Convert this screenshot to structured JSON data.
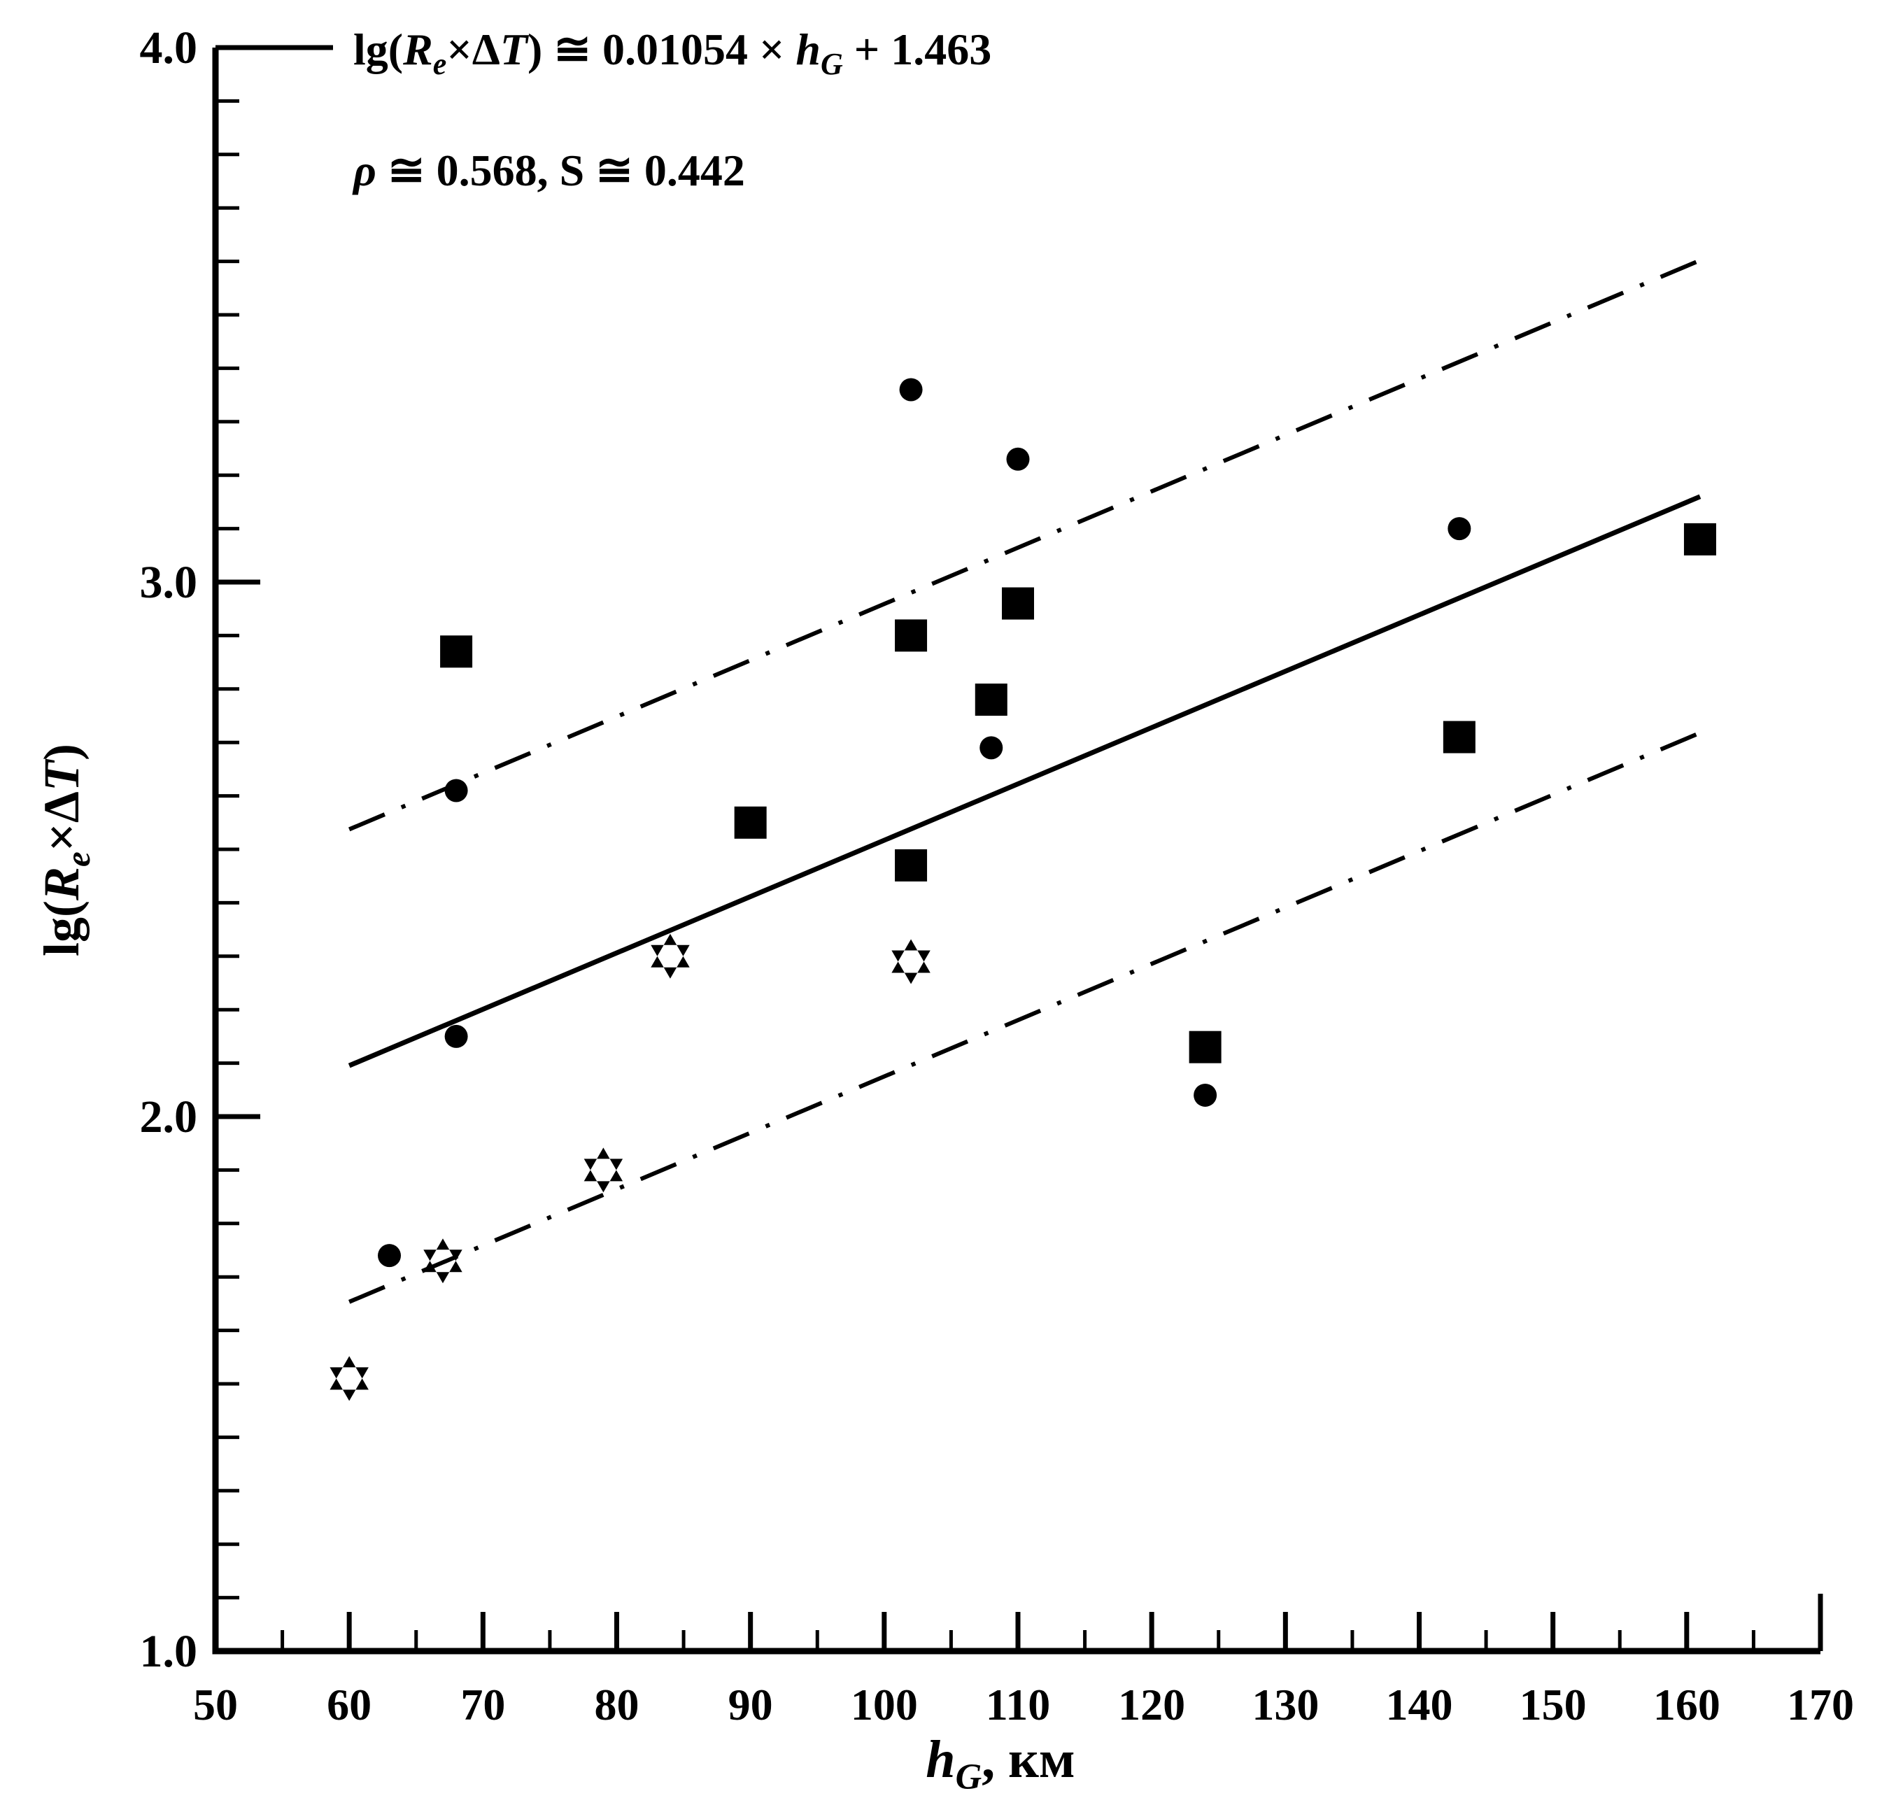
{
  "chart_data": {
    "type": "scatter",
    "title": "",
    "equation_parts": [
      {
        "t": "lg("
      },
      {
        "t": "R",
        "i": 1
      },
      {
        "t": "e",
        "i": 1,
        "sub": 1
      },
      {
        "t": "×Δ"
      },
      {
        "t": "T",
        "i": 1
      },
      {
        "t": ") ≅  0.01054 × "
      },
      {
        "t": "h",
        "i": 1
      },
      {
        "t": "G",
        "i": 1,
        "sub": 1
      },
      {
        "t": " + 1.463"
      }
    ],
    "equation_text": "lg(Re×ΔT) ≅ 0.01054 × hG + 1.463",
    "stats_parts": [
      {
        "t": "ρ",
        "i": 1
      },
      {
        "t": "  ≅ 0.568, S ≅ 0.442"
      }
    ],
    "stats_text": "ρ ≅ 0.568, S ≅ 0.442",
    "xlabel_parts": [
      {
        "t": "h",
        "i": 1
      },
      {
        "t": "G",
        "i": 1,
        "sub": 1
      },
      {
        "t": ", км"
      }
    ],
    "xlabel_text": "hG, км",
    "ylabel_parts": [
      {
        "t": "lg("
      },
      {
        "t": "R",
        "i": 1
      },
      {
        "t": "e",
        "i": 1,
        "sub": 1
      },
      {
        "t": "×Δ"
      },
      {
        "t": "T",
        "i": 1
      },
      {
        "t": ")"
      }
    ],
    "ylabel_text": "lg(Re×ΔT)",
    "x_axis": {
      "min": 50,
      "max": 170,
      "major_step": 10,
      "minor_step": 5,
      "tick_labels": [
        "50",
        "60",
        "70",
        "80",
        "90",
        "100",
        "110",
        "120",
        "130",
        "140",
        "150",
        "160",
        "170"
      ]
    },
    "y_axis": {
      "min": 1.0,
      "max": 4.0,
      "major_step": 1.0,
      "minor_step": 0.1,
      "tick_labels": [
        "1.0",
        "2.0",
        "3.0",
        "4.0"
      ]
    },
    "grid": false,
    "legend": "none",
    "series": [
      {
        "name": "squares",
        "marker": "square",
        "points": [
          [
            68,
            2.87
          ],
          [
            90,
            2.55
          ],
          [
            102,
            2.9
          ],
          [
            110,
            2.96
          ],
          [
            108,
            2.78
          ],
          [
            102,
            2.47
          ],
          [
            124,
            2.13
          ],
          [
            143,
            2.71
          ],
          [
            161,
            3.08
          ]
        ]
      },
      {
        "name": "circles",
        "marker": "circle",
        "points": [
          [
            63,
            1.74
          ],
          [
            68,
            2.15
          ],
          [
            68,
            2.61
          ],
          [
            102,
            3.36
          ],
          [
            108,
            2.69
          ],
          [
            110,
            3.23
          ],
          [
            124,
            2.04
          ],
          [
            143,
            3.1
          ]
        ]
      },
      {
        "name": "stars",
        "marker": "star6",
        "points": [
          [
            60,
            1.51
          ],
          [
            67,
            1.73
          ],
          [
            79,
            1.9
          ],
          [
            84,
            2.3
          ],
          [
            102,
            2.29
          ]
        ]
      }
    ],
    "fit": {
      "slope": 0.01054,
      "intercept": 1.463,
      "band_offset": 0.442,
      "x_start": 60,
      "x_end": 161,
      "rho": 0.568,
      "S": 0.442
    },
    "ink_color": "#000000",
    "background_color": "#ffffff"
  }
}
